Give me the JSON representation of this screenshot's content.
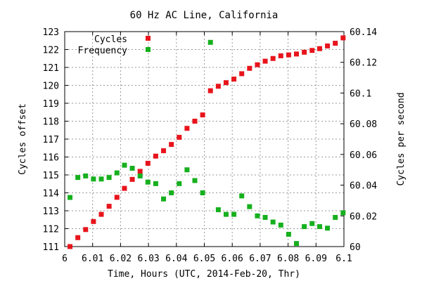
{
  "chart_data": {
    "type": "scatter",
    "title": "60 Hz AC Line, California",
    "xlabel": "Time, Hours (UTC, 2014-Feb-20, Thr)",
    "ylabel": "Cycles offset",
    "y2label": "Cycles per second",
    "xlim": [
      6,
      6.1
    ],
    "ylim": [
      111,
      123
    ],
    "y2lim": [
      60,
      60.14
    ],
    "xticks": [
      "6",
      "6.01",
      "6.02",
      "6.03",
      "6.04",
      "6.05",
      "6.06",
      "6.07",
      "6.08",
      "6.09",
      "6.1"
    ],
    "yticks": [
      "111",
      "112",
      "113",
      "114",
      "115",
      "116",
      "117",
      "118",
      "119",
      "120",
      "121",
      "122",
      "123"
    ],
    "y2ticks": [
      "60",
      "60.02",
      "60.04",
      "60.06",
      "60.08",
      "60.1",
      "60.12",
      "60.14"
    ],
    "grid": true,
    "legend_position": "top-left",
    "series": [
      {
        "name": "Cycles",
        "axis": "left",
        "color": "#e8141c",
        "x": [
          6.0019,
          6.0047,
          6.0075,
          6.0103,
          6.0131,
          6.0159,
          6.0187,
          6.0214,
          6.0242,
          6.027,
          6.0298,
          6.0326,
          6.0354,
          6.0382,
          6.041,
          6.0438,
          6.0466,
          6.0494,
          6.0522,
          6.055,
          6.0578,
          6.0606,
          6.0634,
          6.0662,
          6.069,
          6.0718,
          6.0746,
          6.0774,
          6.0802,
          6.083,
          6.0858,
          6.0886,
          6.0913,
          6.0941,
          6.0969,
          6.0997
        ],
        "y": [
          111.0,
          111.5,
          111.95,
          112.4,
          112.8,
          113.25,
          113.75,
          114.25,
          114.75,
          115.2,
          115.65,
          116.05,
          116.35,
          116.7,
          117.1,
          117.6,
          118.0,
          118.35,
          119.7,
          119.95,
          120.15,
          120.35,
          120.65,
          120.95,
          121.15,
          121.35,
          121.5,
          121.65,
          121.7,
          121.75,
          121.85,
          121.95,
          122.05,
          122.2,
          122.35,
          122.65
        ]
      },
      {
        "name": "Frequency",
        "axis": "right",
        "color": "#16b01e",
        "x": [
          6.0019,
          6.0047,
          6.0075,
          6.0103,
          6.0131,
          6.0159,
          6.0187,
          6.0214,
          6.0242,
          6.027,
          6.0298,
          6.0326,
          6.0354,
          6.0382,
          6.041,
          6.0438,
          6.0466,
          6.0494,
          6.0522,
          6.055,
          6.0578,
          6.0606,
          6.0634,
          6.0662,
          6.069,
          6.0718,
          6.0746,
          6.0774,
          6.0802,
          6.083,
          6.0858,
          6.0886,
          6.0913,
          6.0941,
          6.0969,
          6.0997
        ],
        "y": [
          60.032,
          60.045,
          60.046,
          60.044,
          60.044,
          60.045,
          60.048,
          60.053,
          60.051,
          60.046,
          60.042,
          60.041,
          60.031,
          60.035,
          60.041,
          60.05,
          60.043,
          60.035,
          60.133,
          60.024,
          60.021,
          60.021,
          60.033,
          60.026,
          60.02,
          60.019,
          60.016,
          60.014,
          60.008,
          60.002,
          60.013,
          60.015,
          60.013,
          60.012,
          60.019,
          60.022
        ]
      }
    ]
  }
}
